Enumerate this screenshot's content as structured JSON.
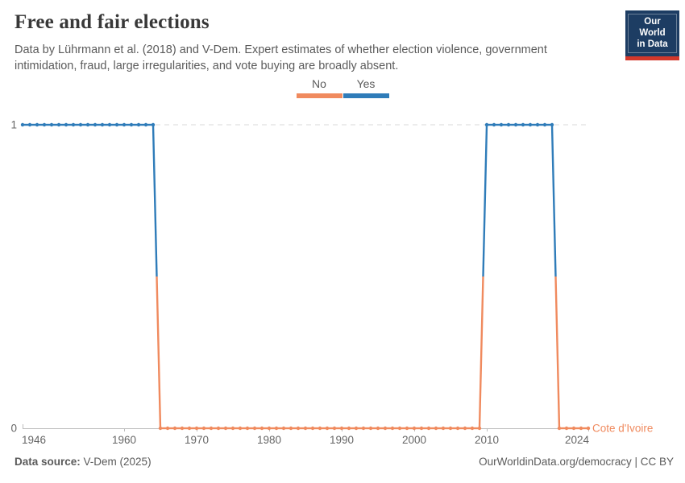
{
  "header": {
    "title": "Free and fair elections",
    "subtitle": "Data by Lührmann et al. (2018) and V-Dem. Expert estimates of whether election violence, government intimidation, fraud, large irregularities, and vote buying are broadly absent.",
    "logo": {
      "line1": "Our World",
      "line2": "in Data",
      "bg": "#1d3d63",
      "stripe": "#d3382b"
    }
  },
  "legend": {
    "items": [
      {
        "label": "No",
        "value": 0,
        "color": "#f08a5e"
      },
      {
        "label": "Yes",
        "value": 1,
        "color": "#2f7cb9"
      }
    ]
  },
  "chart_data": {
    "type": "line",
    "title": "Free and fair elections",
    "entity_label": "Cote d'Ivoire",
    "x_range": [
      1946,
      2024
    ],
    "y_range": [
      0,
      1
    ],
    "x_ticks": [
      1946,
      1960,
      1970,
      1980,
      1990,
      2000,
      2010,
      2024
    ],
    "y_ticks": [
      0,
      1
    ],
    "grid": "dashed gridline at y=1, solid axis at y=0",
    "legend_position": "top-center",
    "point_interval": "yearly, marker dot on every year",
    "series": [
      {
        "name": "Cote d'Ivoire",
        "segments": [
          {
            "from": 1946,
            "to": 1964,
            "value": 1,
            "label": "Yes"
          },
          {
            "from": 1965,
            "to": 2009,
            "value": 0,
            "label": "No"
          },
          {
            "from": 2010,
            "to": 2019,
            "value": 1,
            "label": "Yes"
          },
          {
            "from": 2020,
            "to": 2024,
            "value": 0,
            "label": "No"
          }
        ]
      }
    ],
    "value_colors": {
      "0": "#f08a5e",
      "1": "#2f7cb9"
    },
    "value_labels": {
      "0": "No",
      "1": "Yes"
    },
    "axis_text_color": "#666666",
    "gridline_color": "#d9d9d9",
    "axis_line_color": "#bcbcbc"
  },
  "footer": {
    "source_label": "Data source:",
    "source_value": " V-Dem (2025)",
    "rights": "OurWorldinData.org/democracy | CC BY"
  }
}
